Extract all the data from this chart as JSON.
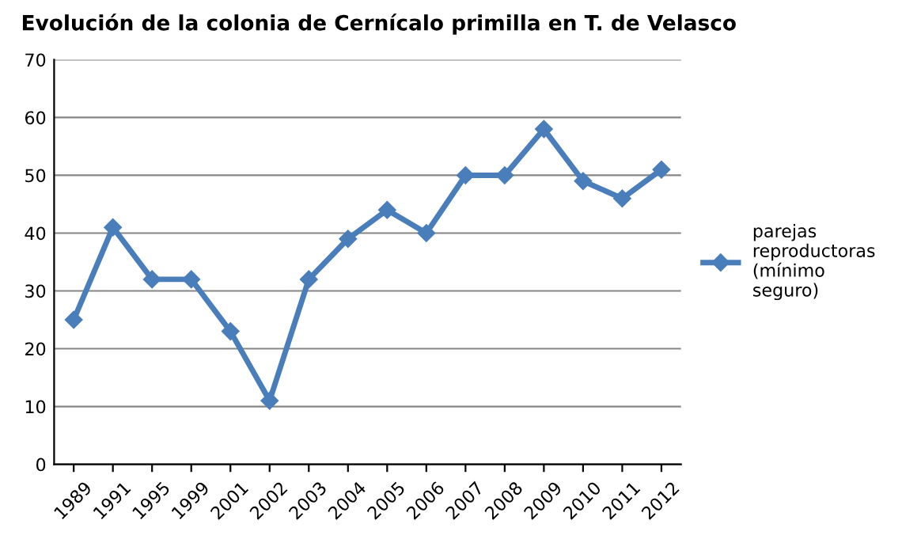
{
  "chart_data": {
    "type": "line",
    "title": "Evolución de la colonia de Cernícalo primilla en T. de Velasco",
    "categories": [
      "1989",
      "1991",
      "1995",
      "1999",
      "2001",
      "2002",
      "2003",
      "2004",
      "2005",
      "2006",
      "2007",
      "2008",
      "2009",
      "2010",
      "2011",
      "2012"
    ],
    "series": [
      {
        "name": "parejas reproductoras (mínimo seguro)",
        "color": "#4a7ebb",
        "values": [
          25,
          41,
          32,
          32,
          23,
          11,
          32,
          39,
          44,
          40,
          50,
          50,
          58,
          49,
          46,
          51
        ]
      }
    ],
    "ylim": [
      0,
      70
    ],
    "yticks": [
      0,
      10,
      20,
      30,
      40,
      50,
      60,
      70
    ],
    "grid": "y",
    "legend": "right",
    "marker": "diamond",
    "line_style": "solid"
  }
}
